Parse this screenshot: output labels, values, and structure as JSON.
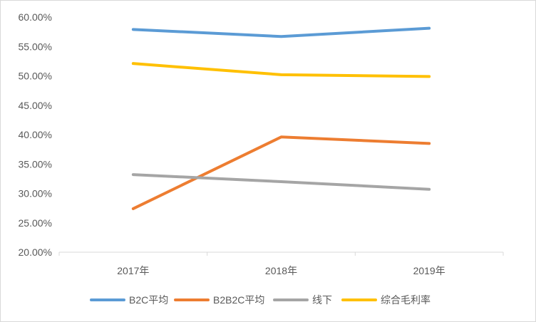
{
  "chart_data": {
    "type": "line",
    "categories": [
      "2017年",
      "2018年",
      "2019年"
    ],
    "series": [
      {
        "name": "B2C平均",
        "color": "#5B9BD5",
        "values": [
          57.9,
          56.7,
          58.1
        ]
      },
      {
        "name": "B2B2C平均",
        "color": "#ED7D31",
        "values": [
          27.4,
          39.6,
          38.5
        ]
      },
      {
        "name": "线下",
        "color": "#A5A5A5",
        "values": [
          33.2,
          32.0,
          30.7
        ]
      },
      {
        "name": "综合毛利率",
        "color": "#FFC000",
        "values": [
          52.1,
          50.2,
          49.9
        ]
      }
    ],
    "ylim": [
      20,
      60
    ],
    "y_step": 5,
    "y_tick_labels": [
      "20.00%",
      "25.00%",
      "30.00%",
      "35.00%",
      "40.00%",
      "45.00%",
      "50.00%",
      "55.00%",
      "60.00%"
    ],
    "y_unit": "%",
    "title": "",
    "xlabel": "",
    "ylabel": "",
    "grid": false,
    "legend_position": "bottom"
  }
}
